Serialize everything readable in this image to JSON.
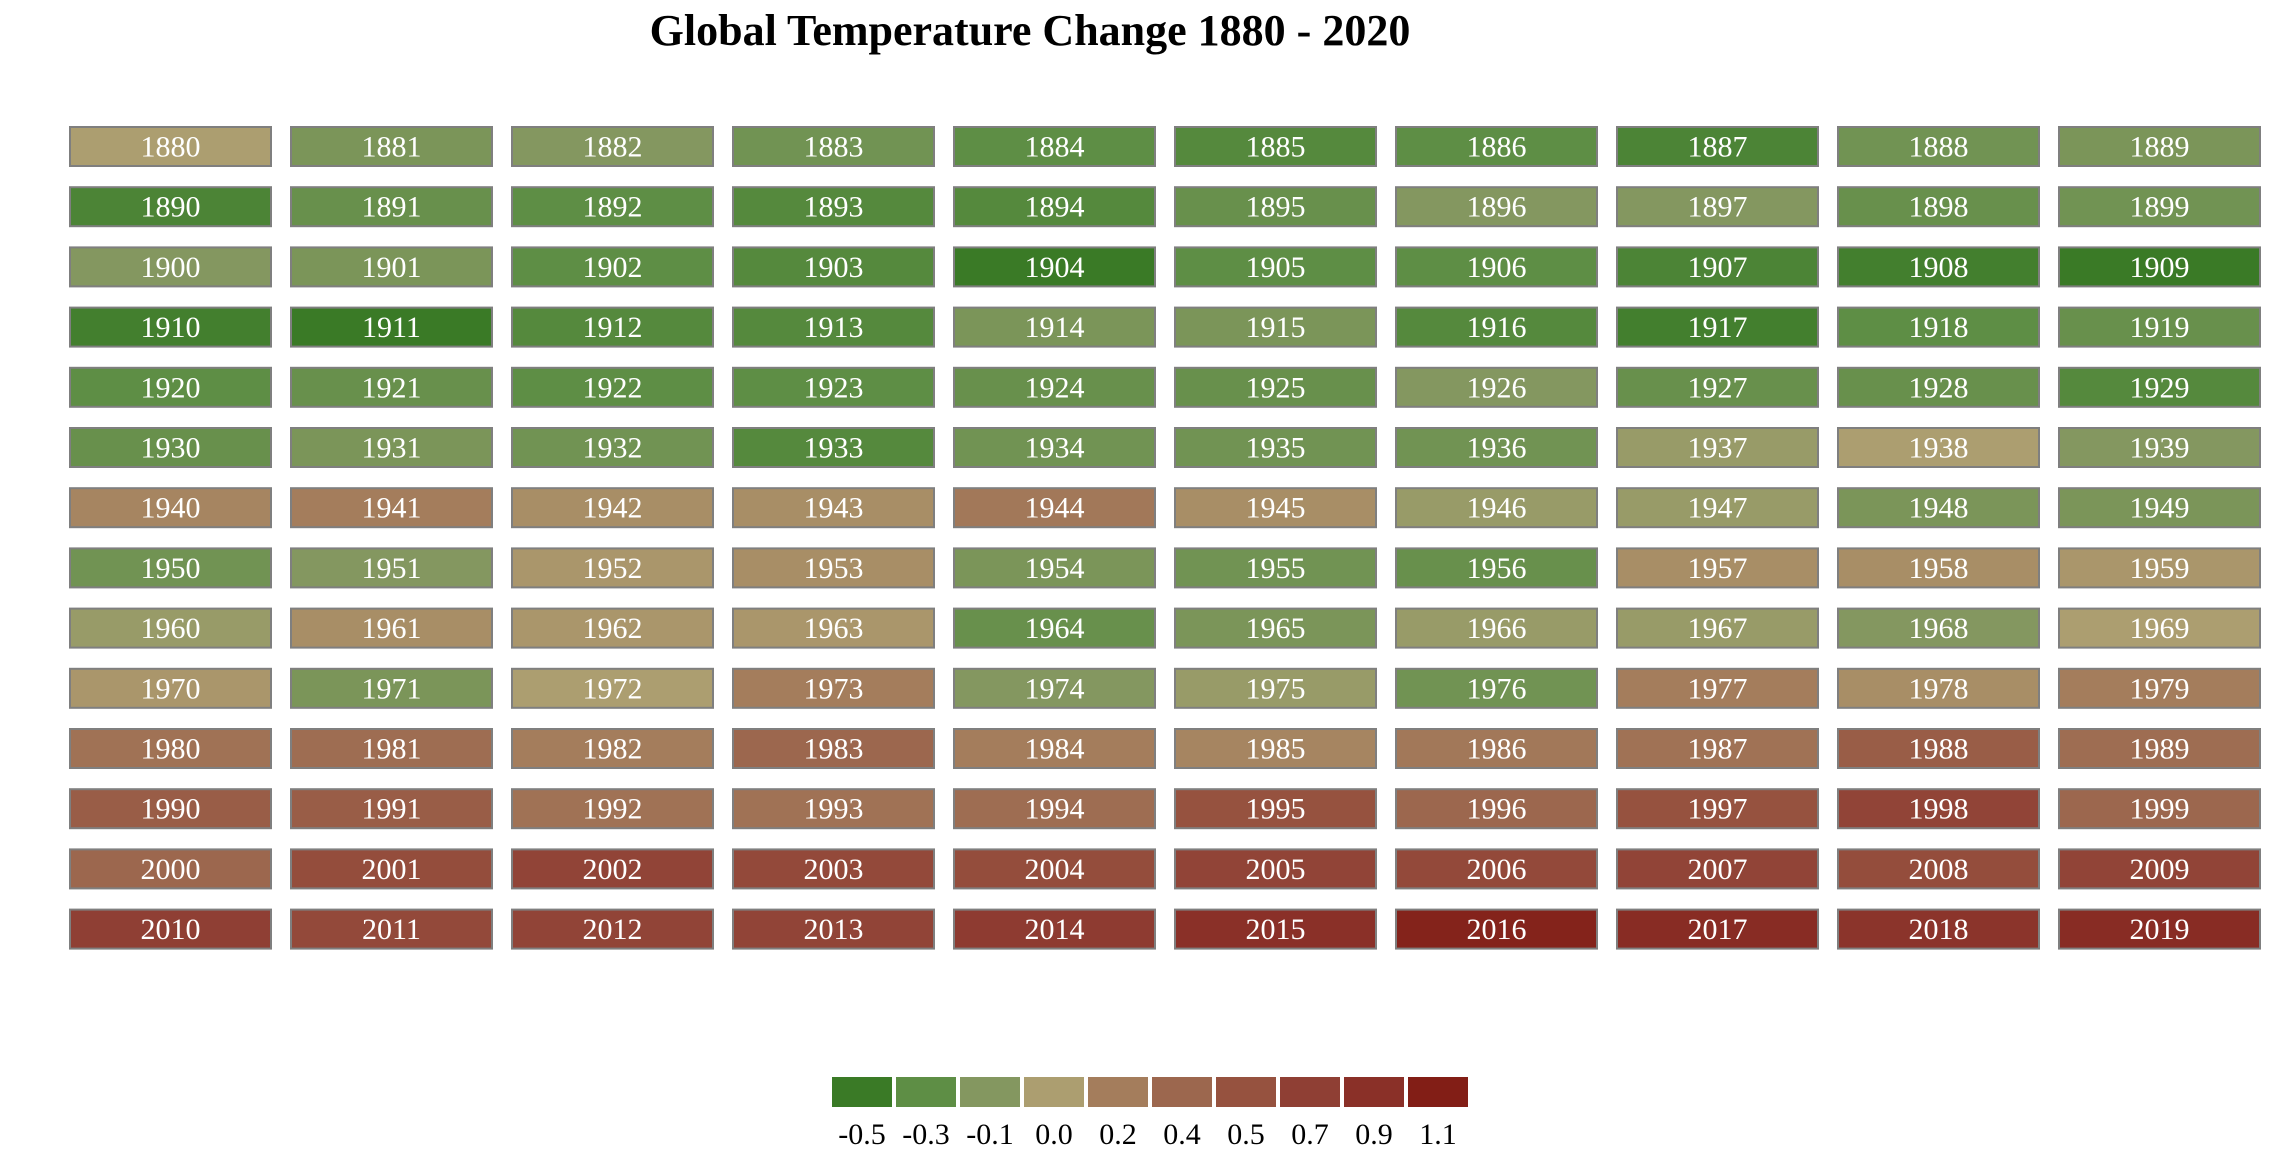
{
  "chart_data": {
    "type": "heatmap",
    "title": "Global Temperature Change 1880 - 2020",
    "legend": {
      "placement": "bottom-center",
      "colors": [
        "#3a7a26",
        "#5e8e45",
        "#849760",
        "#ac9e70",
        "#a47d5c",
        "#9c674e",
        "#96523f",
        "#8f3f34",
        "#8a3028",
        "#821e16"
      ],
      "ticks": [
        "-0.5",
        "-0.3",
        "-0.1",
        "0.0",
        "0.2",
        "0.4",
        "0.5",
        "0.7",
        "0.9",
        "1.1"
      ]
    },
    "decades": [
      1880,
      1890,
      1900,
      1910,
      1920,
      1930,
      1940,
      1950,
      1960,
      1970,
      1980,
      1990,
      2000,
      2010
    ],
    "years_per_row": 10,
    "values": [
      [
        0.0,
        -0.15,
        -0.1,
        -0.2,
        -0.3,
        -0.35,
        -0.3,
        -0.4,
        -0.2,
        -0.15
      ],
      [
        -0.4,
        -0.25,
        -0.3,
        -0.35,
        -0.35,
        -0.25,
        -0.1,
        -0.1,
        -0.25,
        -0.2
      ],
      [
        -0.1,
        -0.15,
        -0.3,
        -0.35,
        -0.5,
        -0.3,
        -0.3,
        -0.4,
        -0.45,
        -0.5
      ],
      [
        -0.45,
        -0.5,
        -0.35,
        -0.35,
        -0.15,
        -0.15,
        -0.35,
        -0.45,
        -0.3,
        -0.25
      ],
      [
        -0.3,
        -0.25,
        -0.3,
        -0.3,
        -0.25,
        -0.25,
        -0.1,
        -0.25,
        -0.25,
        -0.35
      ],
      [
        -0.25,
        -0.15,
        -0.2,
        -0.35,
        -0.2,
        -0.2,
        -0.2,
        -0.05,
        0.0,
        -0.1
      ],
      [
        0.15,
        0.2,
        0.1,
        0.1,
        0.25,
        0.1,
        -0.05,
        -0.05,
        -0.15,
        -0.15
      ],
      [
        -0.2,
        -0.1,
        0.05,
        0.1,
        -0.15,
        -0.2,
        -0.25,
        0.1,
        0.1,
        0.05
      ],
      [
        -0.05,
        0.1,
        0.05,
        0.05,
        -0.25,
        -0.15,
        -0.05,
        -0.05,
        -0.1,
        0.0
      ],
      [
        0.05,
        -0.15,
        0.0,
        0.2,
        -0.1,
        -0.05,
        -0.2,
        0.2,
        0.1,
        0.2
      ],
      [
        0.3,
        0.35,
        0.2,
        0.4,
        0.2,
        0.15,
        0.25,
        0.3,
        0.45,
        0.35
      ],
      [
        0.45,
        0.45,
        0.3,
        0.3,
        0.35,
        0.5,
        0.4,
        0.5,
        0.65,
        0.4
      ],
      [
        0.4,
        0.55,
        0.65,
        0.6,
        0.55,
        0.65,
        0.6,
        0.65,
        0.55,
        0.65
      ],
      [
        0.7,
        0.6,
        0.65,
        0.65,
        0.75,
        0.9,
        1.05,
        0.95,
        0.85,
        0.95
      ]
    ]
  }
}
